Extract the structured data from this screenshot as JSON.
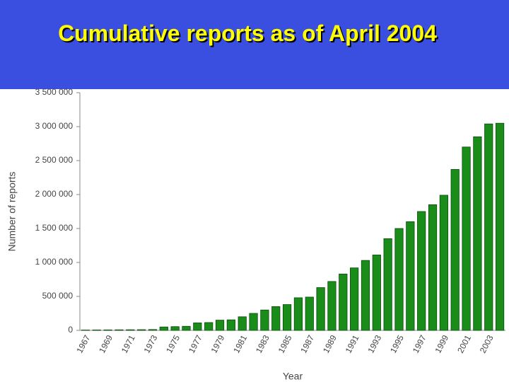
{
  "chart_data": {
    "type": "bar",
    "title": "Cumulative reports as of April 2004",
    "x_label": "Year",
    "y_label": "Number of reports",
    "categories": [
      "1967",
      null,
      "1969",
      null,
      "1971",
      null,
      "1973",
      null,
      "1975",
      null,
      "1977",
      null,
      "1979",
      null,
      "1981",
      null,
      "1983",
      null,
      "1985",
      null,
      "1987",
      null,
      "1989",
      null,
      "1991",
      null,
      "1993",
      null,
      "1995",
      null,
      "1997",
      null,
      "1999",
      null,
      "2001",
      null,
      "2003",
      null
    ],
    "values": [
      5000,
      6000,
      7000,
      8000,
      9000,
      10000,
      12000,
      50000,
      55000,
      60000,
      110000,
      115000,
      150000,
      155000,
      200000,
      250000,
      300000,
      350000,
      380000,
      480000,
      490000,
      630000,
      720000,
      830000,
      920000,
      1030000,
      1110000,
      1350000,
      1500000,
      1600000,
      1750000,
      1850000,
      1990000,
      2370000,
      2700000,
      2850000,
      3040000,
      3050000
    ],
    "color": "#1a8c1a",
    "ylim": [
      0,
      3500000
    ],
    "yticks": [
      0,
      {
        "value": 500000,
        "label": "500 000"
      },
      {
        "value": 1000000,
        "label": "1 000 000"
      },
      {
        "value": 1500000,
        "label": "1 500 000"
      },
      {
        "value": 2000000,
        "label": "2 000 000"
      },
      {
        "value": 2500000,
        "label": "2 500 000"
      },
      {
        "value": 3000000,
        "label": "3 000 000"
      },
      {
        "value": 3500000,
        "label": "3 500 000"
      }
    ],
    "grid": false
  }
}
